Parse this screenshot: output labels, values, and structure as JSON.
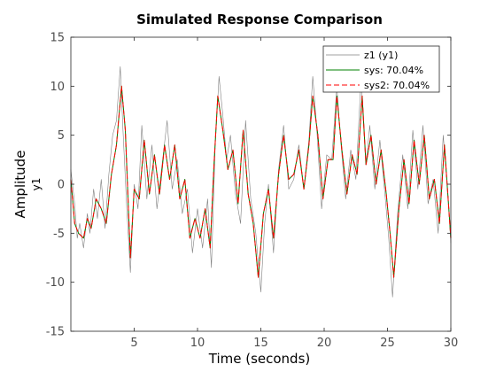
{
  "chart_data": {
    "type": "line",
    "title": "Simulated Response Comparison",
    "xlabel": "Time (seconds)",
    "ylabel": "Amplitude",
    "ylabel_sub": "y1",
    "xlim": [
      0,
      30
    ],
    "ylim": [
      -15,
      15
    ],
    "xticks": [
      5,
      10,
      15,
      20,
      25,
      30
    ],
    "yticks": [
      -15,
      -10,
      -5,
      0,
      5,
      10,
      15
    ],
    "grid": false,
    "legend_position": "top-right",
    "series": [
      {
        "name": "z1 (y1)",
        "color": "#808080",
        "style": "solid",
        "x": [
          0.0,
          0.3,
          0.5,
          0.7,
          1.0,
          1.3,
          1.5,
          1.8,
          2.1,
          2.4,
          2.7,
          3.0,
          3.3,
          3.6,
          3.9,
          4.1,
          4.4,
          4.7,
          5.0,
          5.3,
          5.6,
          6.0,
          6.4,
          6.8,
          7.2,
          7.6,
          8.0,
          8.4,
          8.8,
          9.2,
          9.6,
          10.0,
          10.4,
          10.8,
          11.1,
          11.4,
          11.7,
          12.0,
          12.3,
          12.6,
          13.0,
          13.4,
          13.8,
          14.2,
          14.6,
          15.0,
          15.3,
          15.6,
          16.0,
          16.4,
          16.8,
          17.2,
          17.6,
          18.0,
          18.4,
          18.8,
          19.1,
          19.4,
          19.8,
          20.2,
          20.6,
          21.0,
          21.3,
          21.7,
          22.1,
          22.5,
          22.9,
          23.3,
          23.6,
          24.0,
          24.4,
          24.8,
          25.1,
          25.4,
          25.8,
          26.2,
          26.6,
          27.0,
          27.4,
          27.8,
          28.2,
          28.6,
          29.0,
          29.4,
          29.8,
          30.0
        ],
        "values": [
          1.5,
          -2.0,
          -5.5,
          -4.0,
          -6.5,
          -3.0,
          -5.0,
          -0.5,
          -3.5,
          0.5,
          -4.5,
          1.0,
          5.0,
          6.5,
          12.0,
          6.0,
          -2.0,
          -9.0,
          0.0,
          -2.5,
          6.0,
          -1.5,
          4.0,
          -2.5,
          2.0,
          6.5,
          -0.5,
          2.5,
          -3.0,
          -0.5,
          -7.0,
          -2.5,
          -6.5,
          -1.5,
          -8.5,
          4.0,
          11.0,
          7.0,
          2.5,
          5.0,
          -1.0,
          -4.0,
          6.5,
          -1.5,
          -5.0,
          -11.0,
          -4.0,
          0.0,
          -7.0,
          1.5,
          6.0,
          -0.5,
          0.5,
          4.0,
          -0.5,
          4.5,
          11.0,
          6.0,
          -2.5,
          3.0,
          2.5,
          10.0,
          4.5,
          -1.5,
          3.5,
          0.5,
          10.5,
          2.0,
          6.0,
          -0.5,
          4.5,
          -1.0,
          -5.5,
          -11.5,
          -3.0,
          3.0,
          -2.5,
          5.5,
          -0.5,
          6.0,
          -2.0,
          0.5,
          -5.0,
          5.0,
          -1.5,
          -6.0
        ]
      },
      {
        "name": "sys: 70.04%",
        "color": "#008000",
        "style": "solid",
        "x": [
          0.0,
          0.3,
          0.6,
          1.0,
          1.3,
          1.6,
          2.0,
          2.4,
          2.8,
          3.2,
          3.6,
          4.0,
          4.3,
          4.7,
          5.0,
          5.4,
          5.8,
          6.2,
          6.6,
          7.0,
          7.4,
          7.8,
          8.2,
          8.6,
          9.0,
          9.4,
          9.8,
          10.2,
          10.6,
          11.0,
          11.3,
          11.6,
          12.0,
          12.4,
          12.8,
          13.2,
          13.6,
          14.0,
          14.4,
          14.8,
          15.2,
          15.6,
          16.0,
          16.4,
          16.8,
          17.2,
          17.6,
          18.0,
          18.4,
          18.8,
          19.1,
          19.5,
          19.9,
          20.3,
          20.7,
          21.0,
          21.4,
          21.8,
          22.2,
          22.6,
          23.0,
          23.3,
          23.7,
          24.1,
          24.5,
          24.9,
          25.2,
          25.5,
          25.9,
          26.3,
          26.7,
          27.1,
          27.5,
          27.9,
          28.3,
          28.7,
          29.1,
          29.5,
          30.0
        ],
        "values": [
          0.5,
          -4.0,
          -5.0,
          -5.5,
          -3.5,
          -4.5,
          -1.5,
          -2.5,
          -4.0,
          1.0,
          4.0,
          10.0,
          5.5,
          -7.5,
          -0.5,
          -1.5,
          4.5,
          -1.0,
          3.0,
          -1.0,
          4.0,
          0.5,
          4.0,
          -1.5,
          0.5,
          -5.5,
          -3.5,
          -5.5,
          -2.5,
          -6.5,
          2.0,
          9.0,
          5.5,
          1.5,
          3.5,
          -2.0,
          5.5,
          -1.0,
          -4.0,
          -9.5,
          -3.0,
          -0.5,
          -5.5,
          1.0,
          5.0,
          0.5,
          1.0,
          3.5,
          -0.5,
          4.0,
          9.0,
          5.0,
          -1.5,
          2.5,
          2.5,
          9.0,
          3.5,
          -1.0,
          3.0,
          1.0,
          9.0,
          2.0,
          5.0,
          0.0,
          3.5,
          -1.0,
          -5.0,
          -9.5,
          -2.5,
          2.5,
          -2.0,
          4.5,
          0.0,
          5.0,
          -1.5,
          0.5,
          -4.0,
          4.0,
          -5.5
        ]
      },
      {
        "name": "sys2: 70.04%",
        "color": "#ff0000",
        "style": "dashed",
        "x": [
          0.0,
          0.3,
          0.6,
          1.0,
          1.3,
          1.6,
          2.0,
          2.4,
          2.8,
          3.2,
          3.6,
          4.0,
          4.3,
          4.7,
          5.0,
          5.4,
          5.8,
          6.2,
          6.6,
          7.0,
          7.4,
          7.8,
          8.2,
          8.6,
          9.0,
          9.4,
          9.8,
          10.2,
          10.6,
          11.0,
          11.3,
          11.6,
          12.0,
          12.4,
          12.8,
          13.2,
          13.6,
          14.0,
          14.4,
          14.8,
          15.2,
          15.6,
          16.0,
          16.4,
          16.8,
          17.2,
          17.6,
          18.0,
          18.4,
          18.8,
          19.1,
          19.5,
          19.9,
          20.3,
          20.7,
          21.0,
          21.4,
          21.8,
          22.2,
          22.6,
          23.0,
          23.3,
          23.7,
          24.1,
          24.5,
          24.9,
          25.2,
          25.5,
          25.9,
          26.3,
          26.7,
          27.1,
          27.5,
          27.9,
          28.3,
          28.7,
          29.1,
          29.5,
          30.0
        ],
        "values": [
          0.5,
          -4.0,
          -5.0,
          -5.5,
          -3.5,
          -4.5,
          -1.5,
          -2.5,
          -4.0,
          1.0,
          4.0,
          10.0,
          5.5,
          -7.5,
          -0.5,
          -1.5,
          4.5,
          -1.0,
          3.0,
          -1.0,
          4.0,
          0.5,
          4.0,
          -1.5,
          0.5,
          -5.5,
          -3.5,
          -5.5,
          -2.5,
          -6.5,
          2.0,
          9.0,
          5.5,
          1.5,
          3.5,
          -2.0,
          5.5,
          -1.0,
          -4.0,
          -9.5,
          -3.0,
          -0.5,
          -5.5,
          1.0,
          5.0,
          0.5,
          1.0,
          3.5,
          -0.5,
          4.0,
          9.0,
          5.0,
          -1.5,
          2.5,
          2.5,
          9.0,
          3.5,
          -1.0,
          3.0,
          1.0,
          9.0,
          2.0,
          5.0,
          0.0,
          3.5,
          -1.0,
          -5.0,
          -9.5,
          -2.5,
          2.5,
          -2.0,
          4.5,
          0.0,
          5.0,
          -1.5,
          0.5,
          -4.0,
          4.0,
          -5.5
        ]
      }
    ]
  }
}
